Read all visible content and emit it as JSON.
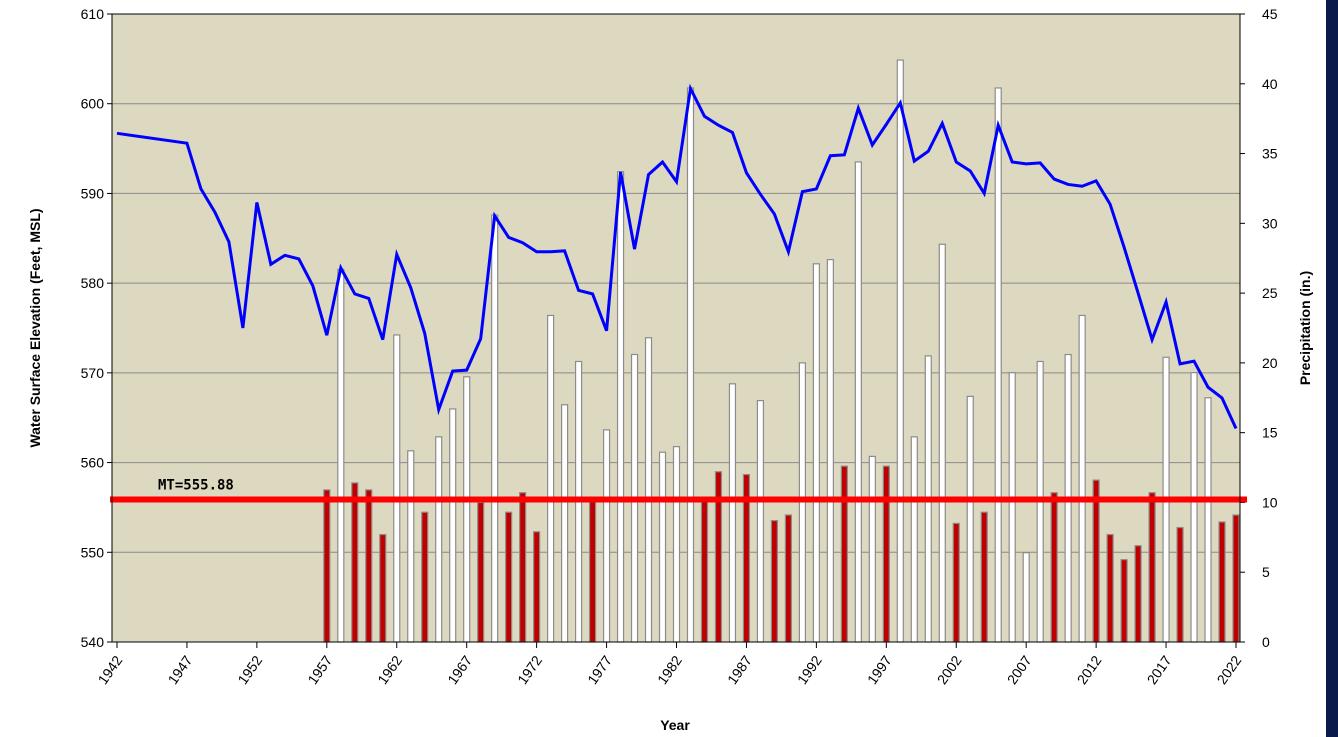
{
  "chart_data": {
    "type": "combo",
    "y_label": "Water Surface Elevation (Feet, MSL)",
    "y2_label": "Precipitation (in.)",
    "x_label": "Year",
    "xlim": [
      1942,
      2022
    ],
    "xticks": [
      1942,
      1947,
      1952,
      1957,
      1962,
      1967,
      1972,
      1977,
      1982,
      1987,
      1992,
      1997,
      2002,
      2007,
      2012,
      2017,
      2022
    ],
    "ylim": [
      540,
      610
    ],
    "yticks": [
      540,
      550,
      560,
      570,
      580,
      590,
      600,
      610
    ],
    "y2lim": [
      0,
      45
    ],
    "y2ticks": [
      0,
      5,
      10,
      15,
      20,
      25,
      30,
      35,
      40,
      45
    ],
    "grid": true,
    "series": [
      {
        "type": "line",
        "color": "#0000ff",
        "x": [
          1942,
          1947,
          1948,
          1949,
          1950,
          1951,
          1952,
          1953,
          1954,
          1955,
          1956,
          1957,
          1958,
          1959,
          1960,
          1961,
          1962,
          1963,
          1964,
          1965,
          1966,
          1967,
          1968,
          1969,
          1970,
          1971,
          1972,
          1973,
          1974,
          1975,
          1976,
          1977,
          1978,
          1979,
          1980,
          1981,
          1982,
          1983,
          1984,
          1985,
          1986,
          1987,
          1988,
          1989,
          1990,
          1991,
          1992,
          1993,
          1994,
          1995,
          1996,
          1997,
          1998,
          1999,
          2000,
          2001,
          2002,
          2003,
          2004,
          2005,
          2006,
          2007,
          2008,
          2009,
          2010,
          2011,
          2012,
          2013,
          2014,
          2015,
          2016,
          2017,
          2018,
          2019,
          2020,
          2021,
          2022
        ],
        "values": [
          596.7,
          595.6,
          590.5,
          587.9,
          584.6,
          575.0,
          589.0,
          582.1,
          583.1,
          582.7,
          579.7,
          574.2,
          581.7,
          578.8,
          578.3,
          573.7,
          583.2,
          579.5,
          574.4,
          565.9,
          570.2,
          570.3,
          573.8,
          587.5,
          585.1,
          584.5,
          583.5,
          583.5,
          583.6,
          579.2,
          578.8,
          574.7,
          592.4,
          583.8,
          592.1,
          593.5,
          591.3,
          601.7,
          598.6,
          597.6,
          596.8,
          592.3,
          589.9,
          587.7,
          583.5,
          590.2,
          590.5,
          594.2,
          594.3,
          599.5,
          595.4,
          597.7,
          600.1,
          593.6,
          594.7,
          597.8,
          593.5,
          592.5,
          590.0,
          597.6,
          593.5,
          593.3,
          593.4,
          591.6,
          591.0,
          590.8,
          591.4,
          588.8,
          584.0,
          578.9,
          573.7,
          577.9,
          571.0,
          571.3,
          568.4,
          567.2,
          563.8
        ]
      },
      {
        "type": "bar",
        "axis": "y2",
        "x": [
          1957,
          1958,
          1959,
          1960,
          1961,
          1962,
          1963,
          1964,
          1965,
          1966,
          1967,
          1968,
          1969,
          1970,
          1971,
          1972,
          1973,
          1974,
          1975,
          1976,
          1977,
          1978,
          1979,
          1980,
          1981,
          1982,
          1983,
          1984,
          1985,
          1986,
          1987,
          1988,
          1989,
          1990,
          1991,
          1992,
          1993,
          1994,
          1995,
          1996,
          1997,
          1998,
          1999,
          2000,
          2001,
          2002,
          2003,
          2004,
          2005,
          2006,
          2007,
          2008,
          2009,
          2010,
          2011,
          2012,
          2013,
          2014,
          2015,
          2016,
          2017,
          2018,
          2019,
          2020,
          2021,
          2022
        ],
        "values": [
          10.9,
          26.7,
          11.4,
          10.9,
          7.7,
          22.0,
          13.7,
          9.3,
          14.7,
          16.7,
          19.0,
          10.0,
          30.6,
          9.3,
          10.7,
          7.9,
          23.4,
          17.0,
          20.1,
          10.2,
          15.2,
          33.7,
          20.6,
          21.8,
          13.6,
          14.0,
          39.7,
          10.2,
          12.2,
          18.5,
          12.0,
          17.3,
          8.7,
          9.1,
          20.0,
          27.1,
          27.4,
          12.6,
          34.4,
          13.3,
          12.6,
          41.7,
          14.7,
          20.5,
          28.5,
          8.5,
          17.6,
          9.3,
          39.7,
          19.3,
          6.4,
          20.1,
          10.7,
          20.6,
          23.4,
          11.6,
          7.7,
          5.9,
          6.9,
          10.7,
          20.4,
          8.2,
          19.3,
          17.5,
          8.6,
          9.1
        ],
        "colors": [
          "#c00000",
          "#ffffff",
          "#c00000",
          "#c00000",
          "#c00000",
          "#ffffff",
          "#ffffff",
          "#c00000",
          "#ffffff",
          "#ffffff",
          "#ffffff",
          "#c00000",
          "#ffffff",
          "#c00000",
          "#c00000",
          "#c00000",
          "#ffffff",
          "#ffffff",
          "#ffffff",
          "#c00000",
          "#ffffff",
          "#ffffff",
          "#ffffff",
          "#ffffff",
          "#ffffff",
          "#ffffff",
          "#ffffff",
          "#c00000",
          "#c00000",
          "#ffffff",
          "#c00000",
          "#ffffff",
          "#c00000",
          "#c00000",
          "#ffffff",
          "#ffffff",
          "#ffffff",
          "#c00000",
          "#ffffff",
          "#ffffff",
          "#c00000",
          "#ffffff",
          "#ffffff",
          "#ffffff",
          "#ffffff",
          "#c00000",
          "#ffffff",
          "#c00000",
          "#ffffff",
          "#ffffff",
          "#ffffff",
          "#ffffff",
          "#c00000",
          "#ffffff",
          "#ffffff",
          "#c00000",
          "#c00000",
          "#c00000",
          "#c00000",
          "#c00000",
          "#ffffff",
          "#c00000",
          "#ffffff",
          "#ffffff",
          "#c00000",
          "#c00000"
        ]
      }
    ],
    "annotations": [
      {
        "text": "MT=555.88",
        "value": 555.88,
        "color": "#ff0000"
      }
    ]
  }
}
